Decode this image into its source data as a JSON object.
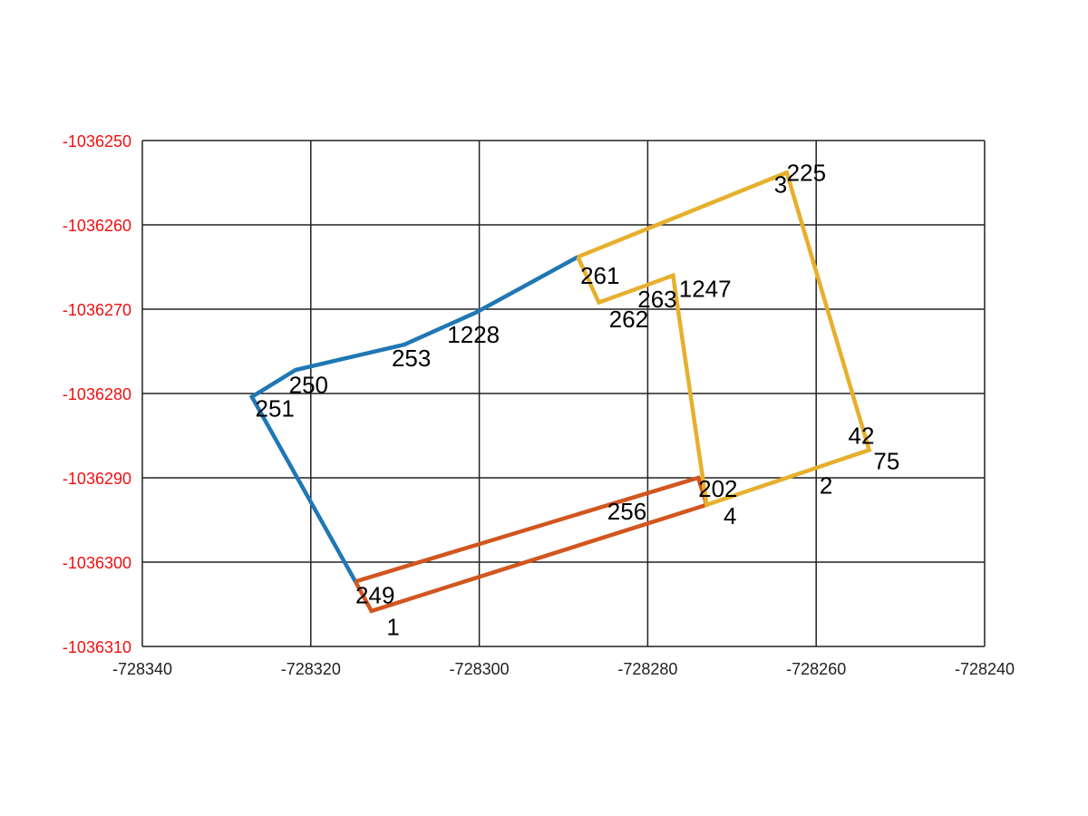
{
  "chart_data": {
    "type": "line",
    "title": "",
    "xlabel": "",
    "ylabel": "",
    "xlim": [
      -728340,
      -728240
    ],
    "ylim": [
      -1036310,
      -1036250
    ],
    "grid": true,
    "x_ticks": [
      -728340,
      -728320,
      -728300,
      -728280,
      -728260,
      -728240
    ],
    "x_tick_labels": [
      "-728340",
      "-728320",
      "-728300",
      "-728280",
      "-728260",
      "-728240"
    ],
    "y_ticks": [
      -1036250,
      -1036260,
      -1036270,
      -1036280,
      -1036290,
      -1036300,
      -1036310
    ],
    "y_tick_labels": [
      "-1036250",
      "-1036260",
      "-1036270",
      "-1036280",
      "-1036290",
      "-1036300",
      "-1036310"
    ],
    "colors": {
      "ytick": "#ee1111",
      "grid": "#222222",
      "blue": "#1f77b4",
      "orange": "#d2561f",
      "gold": "#e6b02d"
    },
    "series": [
      {
        "color": "#1f77b4",
        "points": [
          [
            -728288.3,
            -1036263.8
          ],
          [
            -728300.4,
            -1036270.4
          ],
          [
            -728308.9,
            -1036274.2
          ],
          [
            -728321.8,
            -1036277.2
          ],
          [
            -728327.0,
            -1036280.4
          ],
          [
            -728314.7,
            -1036302.3
          ]
        ]
      },
      {
        "color": "#d2561f",
        "points": [
          [
            -728314.7,
            -1036302.3
          ],
          [
            -728274.0,
            -1036290.0
          ],
          [
            -728273.0,
            -1036293.2
          ],
          [
            -728312.8,
            -1036305.8
          ],
          [
            -728314.7,
            -1036302.3
          ]
        ]
      },
      {
        "color": "#e6b02d",
        "points": [
          [
            -728288.3,
            -1036263.8
          ],
          [
            -728263.5,
            -1036253.8
          ],
          [
            -728253.7,
            -1036286.7
          ],
          [
            -728273.0,
            -1036293.2
          ],
          [
            -728277.0,
            -1036266.0
          ],
          [
            -728280.8,
            -1036267.4
          ],
          [
            -728285.8,
            -1036269.2
          ],
          [
            -728288.3,
            -1036263.8
          ]
        ]
      }
    ],
    "labels": [
      {
        "text": "225",
        "x": -728263.5,
        "y": -1036253.8
      },
      {
        "text": "3",
        "x": -728265.0,
        "y": -1036255.2
      },
      {
        "text": "261",
        "x": -728288.0,
        "y": -1036266.0
      },
      {
        "text": "262",
        "x": -728284.6,
        "y": -1036271.2
      },
      {
        "text": "263",
        "x": -728281.2,
        "y": -1036268.8
      },
      {
        "text": "1247",
        "x": -728276.3,
        "y": -1036267.6
      },
      {
        "text": "1228",
        "x": -728303.8,
        "y": -1036273.0
      },
      {
        "text": "253",
        "x": -728310.4,
        "y": -1036275.8
      },
      {
        "text": "250",
        "x": -728322.6,
        "y": -1036279.0
      },
      {
        "text": "251",
        "x": -728326.6,
        "y": -1036281.8
      },
      {
        "text": "42",
        "x": -728256.2,
        "y": -1036285.0
      },
      {
        "text": "75",
        "x": -728253.2,
        "y": -1036288.0
      },
      {
        "text": "2",
        "x": -728259.6,
        "y": -1036290.9
      },
      {
        "text": "202",
        "x": -728274.0,
        "y": -1036291.3
      },
      {
        "text": "4",
        "x": -728271.0,
        "y": -1036294.5
      },
      {
        "text": "256",
        "x": -728284.8,
        "y": -1036294.0
      },
      {
        "text": "249",
        "x": -728314.7,
        "y": -1036303.9
      },
      {
        "text": "1",
        "x": -728311.0,
        "y": -1036307.7
      }
    ]
  }
}
